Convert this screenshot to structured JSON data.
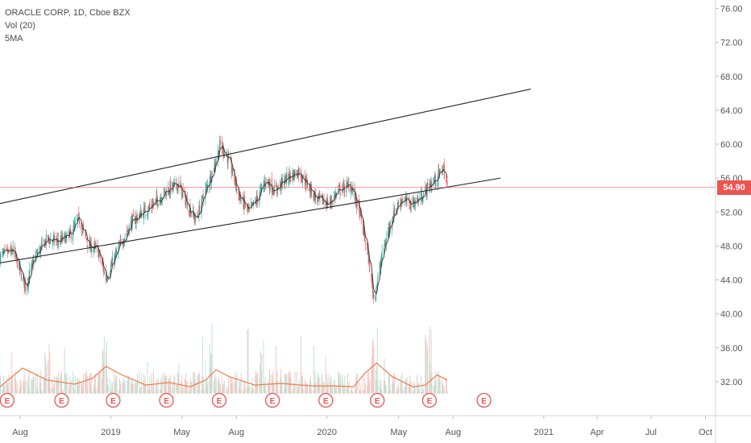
{
  "legend": {
    "symbol": "ORACLE CORP, 1D, Cboe BZX",
    "volume": "Vol (20)",
    "ma": "5MA"
  },
  "colors": {
    "up": "#26a69a",
    "down": "#ef5350",
    "volume_up": "#bfe3d5",
    "volume_down": "#f6c6c2",
    "volume_ma": "#ef7c4a",
    "ma": "#333333",
    "trendline": "#222222",
    "last_price": "#ef5350",
    "earnings": "#ef5350"
  },
  "chart_data": {
    "type": "candlestick",
    "x_range": [
      "2018-06-28",
      "2021-10-18"
    ],
    "y_range": [
      28.0,
      77.0
    ],
    "y_ticks": [
      "76.00",
      "72.00",
      "68.00",
      "64.00",
      "60.00",
      "56.00",
      "52.00",
      "48.00",
      "44.00",
      "40.00",
      "36.00",
      "32.00"
    ],
    "x_ticks": [
      {
        "label": "Aug",
        "date": "2018-08-01"
      },
      {
        "label": "2019",
        "date": "2019-01-01"
      },
      {
        "label": "May",
        "date": "2019-05-01"
      },
      {
        "label": "Aug",
        "date": "2019-08-01"
      },
      {
        "label": "2020",
        "date": "2020-01-01"
      },
      {
        "label": "May",
        "date": "2020-05-01"
      },
      {
        "label": "Aug",
        "date": "2020-08-01"
      },
      {
        "label": "2021",
        "date": "2021-01-01"
      },
      {
        "label": "Apr",
        "date": "2021-04-01"
      },
      {
        "label": "Jul",
        "date": "2021-07-01"
      },
      {
        "label": "Oct",
        "date": "2021-10-01"
      }
    ],
    "price_path": [
      [
        "2018-06-28",
        46.8
      ],
      [
        "2018-07-20",
        47.4
      ],
      [
        "2018-08-10",
        43.2
      ],
      [
        "2018-08-25",
        46.5
      ],
      [
        "2018-09-15",
        48.8
      ],
      [
        "2018-10-05",
        48.5
      ],
      [
        "2018-10-25",
        49.3
      ],
      [
        "2018-11-08",
        51.2
      ],
      [
        "2018-11-25",
        48.0
      ],
      [
        "2018-12-10",
        47.5
      ],
      [
        "2018-12-24",
        44.2
      ],
      [
        "2019-01-15",
        47.8
      ],
      [
        "2019-02-05",
        50.8
      ],
      [
        "2019-02-25",
        52.0
      ],
      [
        "2019-03-15",
        53.0
      ],
      [
        "2019-04-05",
        54.5
      ],
      [
        "2019-04-25",
        55.3
      ],
      [
        "2019-05-10",
        53.0
      ],
      [
        "2019-05-25",
        51.0
      ],
      [
        "2019-06-05",
        53.5
      ],
      [
        "2019-06-25",
        57.5
      ],
      [
        "2019-07-05",
        60.0
      ],
      [
        "2019-07-20",
        58.0
      ],
      [
        "2019-08-05",
        54.0
      ],
      [
        "2019-08-22",
        52.0
      ],
      [
        "2019-09-05",
        53.5
      ],
      [
        "2019-09-20",
        55.8
      ],
      [
        "2019-10-05",
        54.5
      ],
      [
        "2019-10-25",
        56.0
      ],
      [
        "2019-11-15",
        56.8
      ],
      [
        "2019-12-01",
        55.0
      ],
      [
        "2019-12-15",
        53.5
      ],
      [
        "2020-01-05",
        53.0
      ],
      [
        "2020-01-20",
        54.5
      ],
      [
        "2020-02-10",
        55.2
      ],
      [
        "2020-02-25",
        52.0
      ],
      [
        "2020-03-10",
        47.0
      ],
      [
        "2020-03-20",
        41.8
      ],
      [
        "2020-04-05",
        47.5
      ],
      [
        "2020-04-20",
        51.5
      ],
      [
        "2020-05-05",
        53.5
      ],
      [
        "2020-05-20",
        53.0
      ],
      [
        "2020-06-05",
        53.5
      ],
      [
        "2020-06-20",
        55.0
      ],
      [
        "2020-07-05",
        56.0
      ],
      [
        "2020-07-15",
        57.3
      ],
      [
        "2020-07-22",
        55.0
      ]
    ],
    "volume_ma_path": [
      [
        "2018-06-28",
        31.4
      ],
      [
        "2018-08-05",
        33.6
      ],
      [
        "2018-09-15",
        32.2
      ],
      [
        "2018-11-01",
        31.7
      ],
      [
        "2018-12-01",
        32.4
      ],
      [
        "2018-12-24",
        33.8
      ],
      [
        "2019-01-20",
        32.8
      ],
      [
        "2019-03-01",
        31.6
      ],
      [
        "2019-04-10",
        31.9
      ],
      [
        "2019-05-15",
        31.4
      ],
      [
        "2019-06-10",
        32.2
      ],
      [
        "2019-06-28",
        33.4
      ],
      [
        "2019-07-20",
        32.6
      ],
      [
        "2019-09-01",
        31.6
      ],
      [
        "2019-10-15",
        31.8
      ],
      [
        "2019-12-05",
        31.5
      ],
      [
        "2020-01-15",
        31.5
      ],
      [
        "2020-02-15",
        31.4
      ],
      [
        "2020-03-05",
        33.0
      ],
      [
        "2020-03-25",
        34.2
      ],
      [
        "2020-04-20",
        32.6
      ],
      [
        "2020-05-25",
        31.4
      ],
      [
        "2020-06-15",
        31.6
      ],
      [
        "2020-07-05",
        32.8
      ],
      [
        "2020-07-22",
        32.2
      ]
    ],
    "trendlines": [
      {
        "from": [
          "2018-06-28",
          53.0
        ],
        "to": [
          "2020-12-10",
          66.5
        ]
      },
      {
        "from": [
          "2018-06-28",
          46.0
        ],
        "to": [
          "2020-10-20",
          56.0
        ]
      }
    ],
    "last_price": {
      "value": 54.9,
      "label": "54.90"
    },
    "earnings": [
      {
        "label": "E",
        "date": "2018-07-10"
      },
      {
        "label": "E",
        "date": "2018-10-10"
      },
      {
        "label": "E",
        "date": "2019-01-05"
      },
      {
        "label": "E",
        "date": "2019-04-05"
      },
      {
        "label": "E",
        "date": "2019-07-03"
      },
      {
        "label": "E",
        "date": "2019-10-01"
      },
      {
        "label": "E",
        "date": "2019-12-30"
      },
      {
        "label": "E",
        "date": "2020-03-26"
      },
      {
        "label": "E",
        "date": "2020-06-22"
      },
      {
        "label": "E",
        "date": "2020-09-22"
      }
    ]
  }
}
